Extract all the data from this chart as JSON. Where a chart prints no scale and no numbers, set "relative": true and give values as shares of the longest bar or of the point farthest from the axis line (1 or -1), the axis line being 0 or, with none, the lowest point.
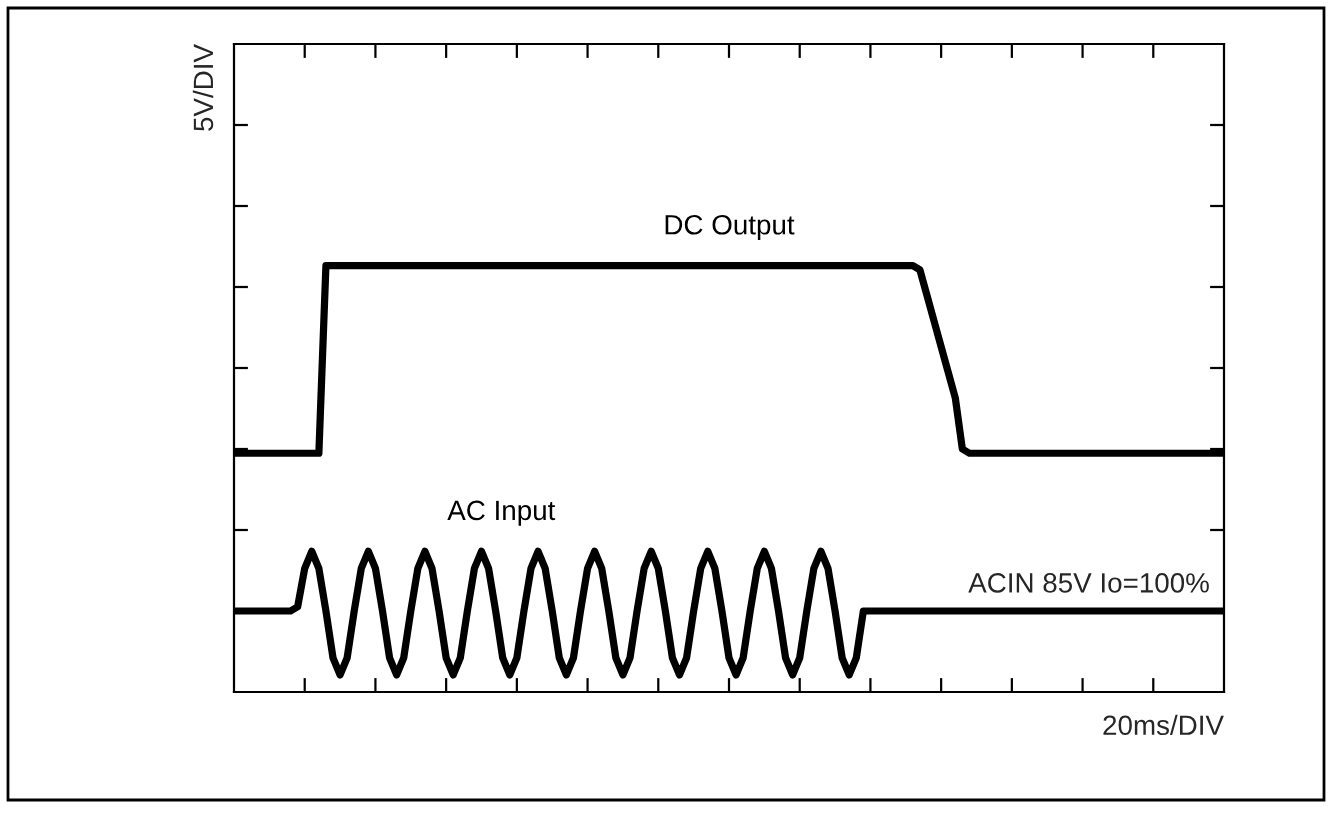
{
  "chart_data": {
    "type": "line",
    "relative": true,
    "ylabel": "5V/DIV",
    "xlabel": "20ms/DIV",
    "legend": false,
    "grid": false,
    "marker": "none",
    "line_style": "solid",
    "categories": [
      null,
      null,
      null,
      null,
      null,
      null,
      null,
      null,
      null,
      null,
      null,
      null,
      null,
      null,
      null,
      null,
      null,
      null,
      null,
      null,
      null,
      null,
      null,
      null,
      null,
      null,
      null,
      null,
      null,
      null,
      null,
      null,
      null,
      null,
      null,
      null,
      null,
      null,
      null,
      null,
      null,
      null,
      null,
      null,
      null,
      null,
      null,
      null,
      null,
      null,
      null,
      null,
      null,
      null,
      null,
      null,
      null,
      null,
      null,
      null,
      null,
      null,
      null,
      null,
      null,
      null,
      null,
      null,
      null,
      null,
      null,
      null,
      null,
      null,
      null,
      null,
      null,
      null,
      null,
      null,
      null,
      null,
      null,
      null,
      null,
      null,
      null,
      null,
      null,
      null,
      null,
      null,
      null,
      null,
      null,
      null,
      null,
      null,
      null,
      null,
      null,
      null,
      null,
      null,
      null,
      null,
      null,
      null,
      null,
      null,
      null,
      null,
      null,
      null,
      null,
      null,
      null,
      null,
      null,
      null,
      null,
      null,
      null,
      null,
      null,
      null,
      null,
      null,
      null,
      null,
      null,
      null,
      null,
      null,
      null,
      null,
      null,
      null,
      null,
      null,
      null
    ],
    "series": [
      {
        "name": "DC Output",
        "color": "#000000",
        "values": [
          0.56,
          0.56,
          0.56,
          0.56,
          0.56,
          0.56,
          0.56,
          0.56,
          0.56,
          0.56,
          0.56,
          0.56,
          0.56,
          1.0,
          1.0,
          1.0,
          1.0,
          1.0,
          1.0,
          1.0,
          1.0,
          1.0,
          1.0,
          1.0,
          1.0,
          1.0,
          1.0,
          1.0,
          1.0,
          1.0,
          1.0,
          1.0,
          1.0,
          1.0,
          1.0,
          1.0,
          1.0,
          1.0,
          1.0,
          1.0,
          1.0,
          1.0,
          1.0,
          1.0,
          1.0,
          1.0,
          1.0,
          1.0,
          1.0,
          1.0,
          1.0,
          1.0,
          1.0,
          1.0,
          1.0,
          1.0,
          1.0,
          1.0,
          1.0,
          1.0,
          1.0,
          1.0,
          1.0,
          1.0,
          1.0,
          1.0,
          1.0,
          1.0,
          1.0,
          1.0,
          1.0,
          1.0,
          1.0,
          1.0,
          1.0,
          1.0,
          1.0,
          1.0,
          1.0,
          1.0,
          1.0,
          1.0,
          1.0,
          1.0,
          1.0,
          1.0,
          1.0,
          1.0,
          1.0,
          1.0,
          1.0,
          1.0,
          1.0,
          1.0,
          1.0,
          1.0,
          1.0,
          0.99,
          0.93,
          0.87,
          0.81,
          0.75,
          0.69,
          0.57,
          0.56,
          0.56,
          0.56,
          0.56,
          0.56,
          0.56,
          0.56,
          0.56,
          0.56,
          0.56,
          0.56,
          0.56,
          0.56,
          0.56,
          0.56,
          0.56,
          0.56,
          0.56,
          0.56,
          0.56,
          0.56,
          0.56,
          0.56,
          0.56,
          0.56,
          0.56,
          0.56,
          0.56,
          0.56,
          0.56,
          0.56,
          0.56,
          0.56,
          0.56,
          0.56,
          0.56,
          0.56
        ]
      },
      {
        "name": "AC Input",
        "color": "#000000",
        "values": [
          0.19,
          0.19,
          0.19,
          0.19,
          0.19,
          0.19,
          0.19,
          0.19,
          0.19,
          0.2,
          0.29,
          0.33,
          0.29,
          0.19,
          0.08,
          0.04,
          0.08,
          0.19,
          0.29,
          0.33,
          0.29,
          0.19,
          0.08,
          0.04,
          0.08,
          0.19,
          0.29,
          0.33,
          0.29,
          0.19,
          0.08,
          0.04,
          0.08,
          0.19,
          0.29,
          0.33,
          0.29,
          0.19,
          0.08,
          0.04,
          0.08,
          0.19,
          0.29,
          0.33,
          0.29,
          0.19,
          0.08,
          0.04,
          0.08,
          0.19,
          0.29,
          0.33,
          0.29,
          0.19,
          0.08,
          0.04,
          0.08,
          0.19,
          0.29,
          0.33,
          0.29,
          0.19,
          0.08,
          0.04,
          0.08,
          0.19,
          0.29,
          0.33,
          0.29,
          0.19,
          0.08,
          0.04,
          0.08,
          0.19,
          0.29,
          0.33,
          0.29,
          0.19,
          0.08,
          0.04,
          0.08,
          0.19,
          0.29,
          0.33,
          0.29,
          0.19,
          0.08,
          0.04,
          0.08,
          0.19,
          0.19,
          0.19,
          0.19,
          0.19,
          0.19,
          0.19,
          0.19,
          0.19,
          0.19,
          0.19,
          0.19,
          0.19,
          0.19,
          0.19,
          0.19,
          0.19,
          0.19,
          0.19,
          0.19,
          0.19,
          0.19,
          0.19,
          0.19,
          0.19,
          0.19,
          0.19,
          0.19,
          0.19,
          0.19,
          0.19,
          0.19,
          0.19,
          0.19,
          0.19,
          0.19,
          0.19,
          0.19,
          0.19,
          0.19,
          0.19,
          0.19,
          0.19,
          0.19,
          0.19,
          0.19,
          0.19,
          0.19,
          0.19,
          0.19,
          0.19,
          0.19
        ]
      }
    ],
    "annotations": [
      {
        "text": "ACIN 85V Io=100%",
        "y": 0.19
      }
    ]
  }
}
